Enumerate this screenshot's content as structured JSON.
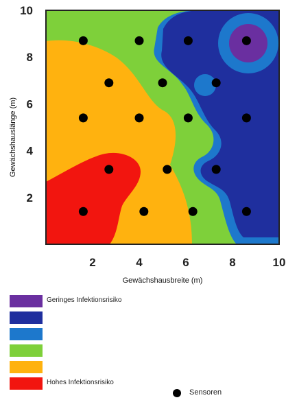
{
  "chart_data": {
    "type": "heatmap",
    "xlabel": "Gewächshausbreite (m)",
    "ylabel": "Gewächshauslänge (m)",
    "xlim": [
      0,
      10
    ],
    "ylim": [
      0,
      10
    ],
    "x_ticks": [
      "2",
      "4",
      "6",
      "8",
      "10"
    ],
    "y_ticks": [
      "2",
      "4",
      "6",
      "8",
      "10"
    ],
    "levels": [
      {
        "label": "Geringes Infektionsrisiko",
        "color": "#6a2fa0"
      },
      {
        "label": "",
        "color": "#1f2f9e"
      },
      {
        "label": "",
        "color": "#1d78cc"
      },
      {
        "label": "",
        "color": "#7ed03a"
      },
      {
        "label": "",
        "color": "#ffb20f"
      },
      {
        "label": "Hohes Infektionsrisiko",
        "color": "#f2150f"
      }
    ],
    "sensors": [
      {
        "x": 1.6,
        "y": 8.7
      },
      {
        "x": 4.0,
        "y": 8.7
      },
      {
        "x": 6.1,
        "y": 8.7
      },
      {
        "x": 8.6,
        "y": 8.7
      },
      {
        "x": 2.7,
        "y": 6.9
      },
      {
        "x": 5.0,
        "y": 6.9
      },
      {
        "x": 7.3,
        "y": 6.9
      },
      {
        "x": 1.6,
        "y": 5.4
      },
      {
        "x": 4.0,
        "y": 5.4
      },
      {
        "x": 6.1,
        "y": 5.4
      },
      {
        "x": 8.6,
        "y": 5.4
      },
      {
        "x": 2.7,
        "y": 3.2
      },
      {
        "x": 5.2,
        "y": 3.2
      },
      {
        "x": 7.3,
        "y": 3.2
      },
      {
        "x": 1.6,
        "y": 1.4
      },
      {
        "x": 4.2,
        "y": 1.4
      },
      {
        "x": 6.3,
        "y": 1.4
      },
      {
        "x": 8.6,
        "y": 1.4
      }
    ],
    "sensor_legend": "Sensoren"
  }
}
